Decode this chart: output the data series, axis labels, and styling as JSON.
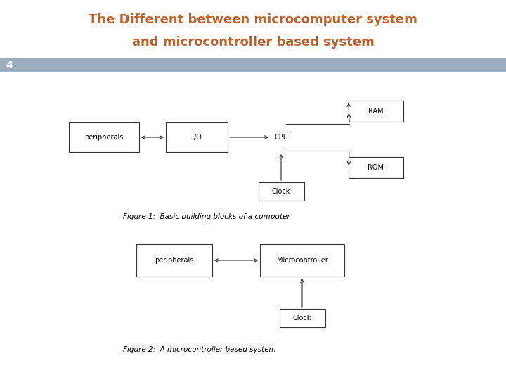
{
  "title_line1": "The Different between microcomputer system",
  "title_line2": "and microcontroller based system",
  "title_color": "#C0602A",
  "slide_number": "4",
  "banner_color": "#9BAEC0",
  "bg_color": "#FFFFFF",
  "fig1_caption": "Figure 1:  Basic building blocks of a computer",
  "fig2_caption": "Figure 2:  A microcontroller based system",
  "box_edge_color": "#333333",
  "box_face_color": "#FFFFFF",
  "arrow_color": "#333333",
  "figsize": [
    7.2,
    5.4
  ],
  "dpi": 100
}
